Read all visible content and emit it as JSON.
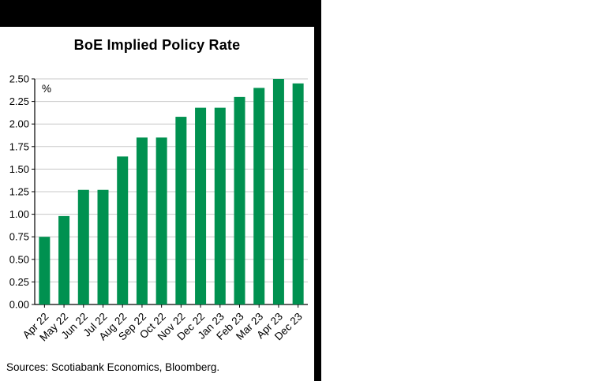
{
  "page": {
    "background": "#ffffff"
  },
  "chart_data": {
    "type": "bar",
    "title": "BoE Implied Policy Rate",
    "unit_label": "%",
    "categories": [
      "Apr 22",
      "May 22",
      "Jun 22",
      "Jul 22",
      "Aug 22",
      "Sep 22",
      "Oct 22",
      "Nov 22",
      "Dec 22",
      "Jan 23",
      "Feb 23",
      "Mar 23",
      "Apr 23",
      "Dec 23"
    ],
    "values": [
      0.75,
      0.98,
      1.27,
      1.27,
      1.64,
      1.85,
      1.85,
      2.08,
      2.18,
      2.18,
      2.3,
      2.4,
      2.5,
      2.45
    ],
    "ylim": [
      0,
      2.5
    ],
    "ytick_step": 0.25,
    "yticks": [
      "0.00",
      "0.25",
      "0.50",
      "0.75",
      "1.00",
      "1.25",
      "1.50",
      "1.75",
      "2.00",
      "2.25",
      "2.50"
    ],
    "grid": true,
    "legend": "none",
    "bar_color": "#009150",
    "grid_color": "#c8c8c8",
    "axis_color": "#000000",
    "source": "Sources: Scotiabank Economics, Bloomberg."
  }
}
